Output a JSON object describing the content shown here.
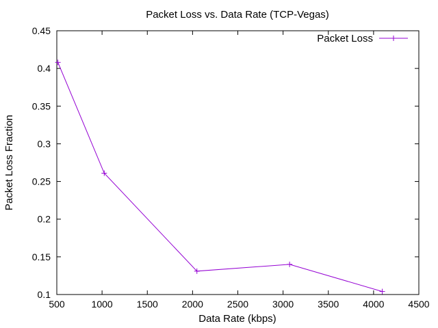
{
  "chart_data": {
    "type": "line",
    "title": "Packet Loss vs. Data Rate (TCP-Vegas)",
    "xlabel": "Data Rate (kbps)",
    "ylabel": "Packet Loss Fraction",
    "xlim": [
      500,
      4500
    ],
    "ylim": [
      0.1,
      0.45
    ],
    "xticks": [
      500,
      1000,
      1500,
      2000,
      2500,
      3000,
      3500,
      4000,
      4500
    ],
    "xtick_labels": [
      "500",
      "1000",
      "1500",
      "2000",
      "2500",
      "3000",
      "3500",
      "4000",
      "4500"
    ],
    "yticks": [
      0.1,
      0.15,
      0.2,
      0.25,
      0.3,
      0.35,
      0.4,
      0.45
    ],
    "ytick_labels": [
      "0.1",
      "0.15",
      "0.2",
      "0.25",
      "0.3",
      "0.35",
      "0.4",
      "0.45"
    ],
    "grid": false,
    "legend_position": "top-right",
    "series": [
      {
        "name": "Packet Loss",
        "color": "#9400d3",
        "marker": "plus",
        "x": [
          512,
          1024,
          2048,
          3072,
          4096
        ],
        "y": [
          0.408,
          0.261,
          0.131,
          0.14,
          0.104
        ]
      }
    ]
  }
}
